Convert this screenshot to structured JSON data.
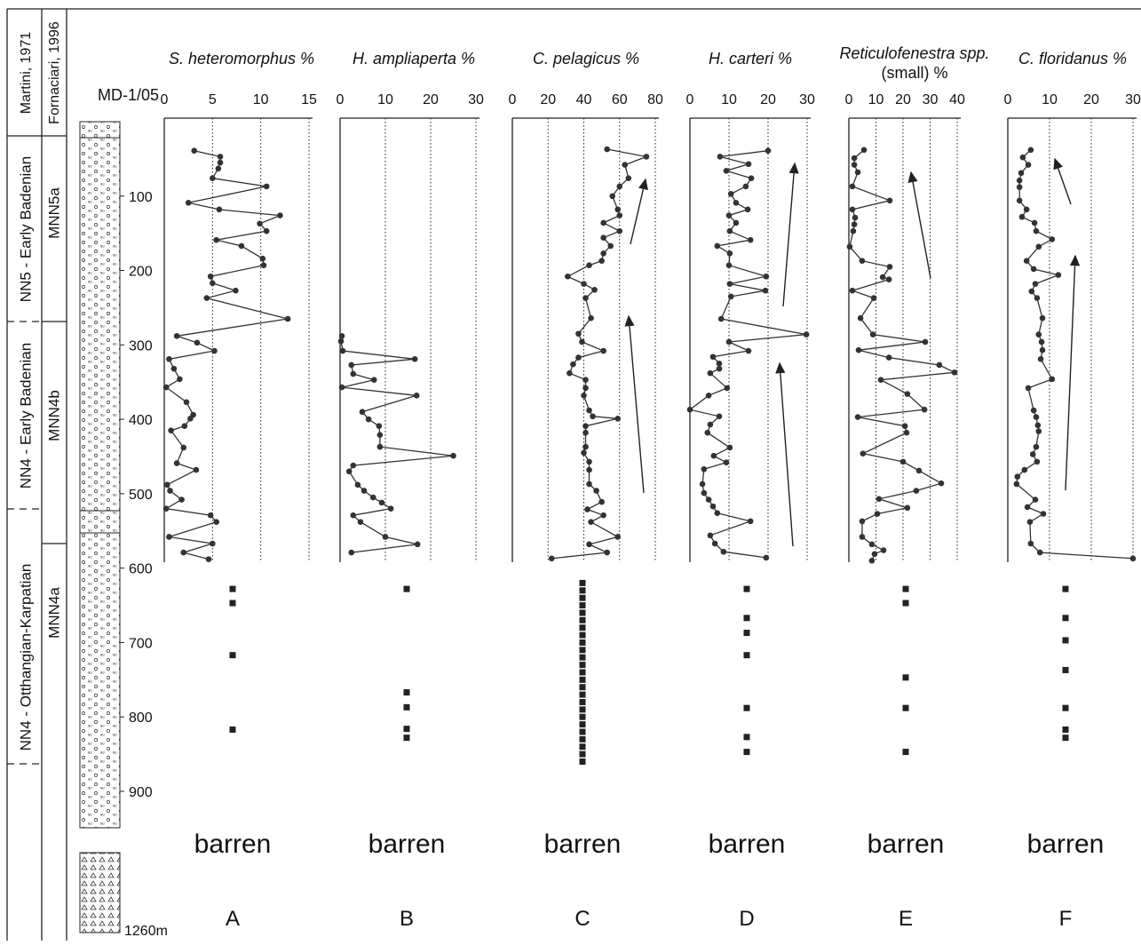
{
  "figure": {
    "zonation_headers": [
      "Martini, 1971",
      "Fornaciari, 1996"
    ],
    "zones": [
      "NN5 - Early Badenian",
      "NN4 - Early Badenian",
      "NN4 - Otthangian-Karpatian"
    ],
    "subzones": [
      "MNN5a",
      "MNN4b",
      "MNN4a"
    ]
  },
  "depth_axis": {
    "label": "MD-1/05",
    "ylim": [
      0,
      900
    ],
    "yticks": [
      100,
      200,
      300,
      400,
      500,
      600,
      700,
      800,
      900
    ],
    "bottom_label": "1260m"
  },
  "chart_data": [
    {
      "type": "line",
      "title": "S. heteromorphus %",
      "panel_label": "A",
      "barren_label": "barren",
      "xlim": [
        0,
        15
      ],
      "xticks": [
        0,
        5,
        10,
        15
      ],
      "series": [
        {
          "color": "#333333",
          "values": [
            3.1,
            5.8,
            5.8,
            5.6,
            5.0,
            10.6,
            2.5,
            5.7,
            12.0,
            9.9,
            10.6,
            5.4,
            8.0,
            10.2,
            10.3,
            4.8,
            5.0,
            7.4,
            4.4,
            12.8,
            1.3,
            3.4,
            5.2,
            0.5,
            1.0,
            1.6,
            0.2,
            2.3,
            3.0,
            2.7,
            2.1,
            0.7,
            2.0,
            1.3,
            3.3,
            0.3,
            0.6,
            1.8,
            0.2,
            4.8,
            5.4,
            0.5,
            5.0,
            2.0,
            4.6
          ],
          "depths": [
            39,
            47,
            55,
            63,
            76,
            87,
            109,
            118,
            126,
            137,
            147,
            159,
            167,
            184,
            193,
            208,
            217,
            227,
            237,
            265,
            288,
            297,
            308,
            319,
            332,
            346,
            357,
            377,
            394,
            399,
            409,
            415,
            438,
            459,
            468,
            488,
            496,
            508,
            520,
            529,
            538,
            558,
            567,
            579,
            588
          ]
        }
      ],
      "barren_samples": [
        628,
        647,
        717,
        817
      ]
    },
    {
      "type": "line",
      "title": "H. ampliaperta %",
      "panel_label": "B",
      "barren_label": "barren",
      "xlim": [
        0,
        30
      ],
      "xticks": [
        0,
        10,
        20,
        30
      ],
      "series": [
        {
          "color": "#333333",
          "values": [
            0.4,
            0.2,
            0.6,
            16.5,
            2.5,
            2.9,
            7.5,
            0.4,
            16.9,
            4.9,
            6.3,
            8.6,
            8.8,
            8.8,
            25,
            2.9,
            2.0,
            3.9,
            5.3,
            7.3,
            9.2,
            11.2,
            2.9,
            4.5,
            10,
            17.1,
            2.5
          ],
          "depths": [
            288,
            295,
            308,
            319,
            327,
            339,
            347,
            357,
            368,
            390,
            400,
            409,
            421,
            437,
            449,
            462,
            470,
            488,
            496,
            505,
            512,
            520,
            529,
            538,
            558,
            568,
            579
          ]
        }
      ],
      "barren_samples": [
        628,
        767,
        787,
        816,
        828
      ]
    },
    {
      "type": "line",
      "title": "C. pelagicus %",
      "panel_label": "C",
      "barren_label": "barren",
      "xlim": [
        0,
        80
      ],
      "xticks": [
        0,
        20,
        40,
        60,
        80
      ],
      "series": [
        {
          "color": "#333333",
          "values": [
            53,
            75,
            63,
            65,
            60,
            56,
            59,
            60,
            51,
            60,
            51,
            55,
            51,
            50,
            43,
            31,
            40,
            46,
            41,
            44,
            37,
            39,
            51,
            37,
            34,
            32,
            41,
            41,
            40,
            43,
            45,
            59,
            41,
            41,
            41,
            40,
            43,
            43,
            43,
            47,
            50,
            42,
            51,
            44,
            59,
            43,
            53,
            22
          ],
          "depths": [
            37,
            47,
            58,
            76,
            87,
            100,
            118,
            126,
            136,
            147,
            156,
            167,
            177,
            187,
            193,
            208,
            218,
            226,
            237,
            264,
            285,
            296,
            308,
            317,
            326,
            338,
            347,
            358,
            368,
            388,
            396,
            399,
            409,
            418,
            437,
            445,
            457,
            468,
            487,
            496,
            511,
            521,
            529,
            538,
            558,
            568,
            579,
            587
          ]
        }
      ],
      "barren_samples": [
        620,
        630,
        640,
        650,
        660,
        670,
        680,
        690,
        700,
        710,
        720,
        730,
        740,
        750,
        760,
        770,
        780,
        790,
        800,
        810,
        820,
        830,
        840,
        850,
        860
      ]
    },
    {
      "type": "line",
      "title": "H. carteri %",
      "panel_label": "D",
      "barren_label": "barren",
      "xlim": [
        0,
        30
      ],
      "xticks": [
        0,
        10,
        20,
        30
      ],
      "series": [
        {
          "color": "#333333",
          "values": [
            20,
            7.7,
            15,
            9.3,
            15.7,
            14.3,
            10.5,
            11.8,
            14.8,
            10,
            11.8,
            10.2,
            15.5,
            7,
            10.2,
            10,
            19.5,
            10.2,
            19.3,
            10.5,
            8,
            29.8,
            10,
            15,
            5.9,
            7.5,
            7.5,
            5.2,
            9.5,
            4.8,
            0,
            7.5,
            5.2,
            4.5,
            10.2,
            6.1,
            9.3,
            3.6,
            3.2,
            3.6,
            4.8,
            5.9,
            7,
            15.5,
            5.2,
            6.4,
            8.6,
            19.5
          ],
          "depths": [
            39,
            47,
            57,
            66,
            76,
            87,
            97,
            109,
            118,
            126,
            136,
            147,
            159,
            167,
            177,
            193,
            208,
            218,
            227,
            235,
            265,
            286,
            296,
            308,
            316,
            325,
            332,
            338,
            358,
            368,
            387,
            396,
            407,
            418,
            438,
            449,
            458,
            467,
            487,
            499,
            508,
            517,
            526,
            537,
            556,
            567,
            578,
            586
          ]
        }
      ],
      "barren_samples": [
        628,
        667,
        687,
        717,
        788,
        827,
        847
      ]
    },
    {
      "type": "line",
      "title": "Reticulofenestra spp.",
      "subtitle": "(small) %",
      "panel_label": "E",
      "barren_label": "barren",
      "xlim": [
        0,
        40
      ],
      "xticks": [
        0,
        10,
        20,
        30,
        40
      ],
      "series": [
        {
          "color": "#333333",
          "values": [
            5.6,
            2,
            2,
            3.3,
            1.3,
            15.1,
            1.3,
            2.3,
            2,
            1.6,
            0.3,
            4.9,
            15.1,
            12.5,
            14.8,
            1.3,
            9.2,
            4.3,
            8.9,
            28.2,
            3.6,
            14.8,
            33.4,
            39,
            11.8,
            21.6,
            27.9,
            3.3,
            20.7,
            21.3,
            5.2,
            20,
            25.9,
            34.1,
            24.9,
            11.1,
            21.6,
            10.5,
            4.9,
            4.9,
            8.5,
            12.8,
            9.5,
            8.5
          ],
          "depths": [
            38,
            49,
            58,
            68,
            87,
            106,
            118,
            129,
            138,
            147,
            168,
            187,
            195,
            209,
            212,
            227,
            237,
            264,
            286,
            296,
            307,
            317,
            327,
            337,
            347,
            366,
            387,
            397,
            409,
            418,
            446,
            457,
            469,
            486,
            496,
            507,
            519,
            527,
            537,
            558,
            568,
            576,
            581,
            590
          ]
        }
      ],
      "barren_samples": [
        628,
        647,
        747,
        788,
        847
      ]
    },
    {
      "type": "line",
      "title": "C. floridanus %",
      "panel_label": "F",
      "barren_label": "barren",
      "xlim": [
        0,
        30
      ],
      "xticks": [
        0,
        10,
        20,
        30
      ],
      "series": [
        {
          "color": "#333333",
          "values": [
            5.5,
            3.6,
            4.9,
            3.2,
            2.8,
            2.8,
            2.8,
            4.5,
            3.4,
            6.4,
            6.8,
            10.6,
            7.4,
            4.5,
            6.2,
            12.1,
            6.6,
            5.7,
            7,
            8.3,
            7.4,
            8.1,
            8.3,
            7.9,
            10.6,
            4.9,
            6.2,
            6.8,
            7.2,
            7.4,
            6.8,
            6,
            7,
            4,
            2.3,
            2.1,
            6.6,
            4.7,
            8.5,
            5.3,
            5.5,
            7.7,
            30
          ],
          "depths": [
            38,
            48,
            58,
            69,
            79,
            88,
            106,
            118,
            128,
            136,
            147,
            158,
            168,
            187,
            198,
            206,
            218,
            228,
            237,
            264,
            286,
            296,
            307,
            319,
            346,
            358,
            388,
            397,
            408,
            416,
            437,
            447,
            457,
            468,
            477,
            487,
            508,
            518,
            527,
            538,
            567,
            579,
            587
          ]
        }
      ],
      "barren_samples": [
        628,
        667,
        697,
        737,
        788,
        817,
        828
      ]
    }
  ]
}
